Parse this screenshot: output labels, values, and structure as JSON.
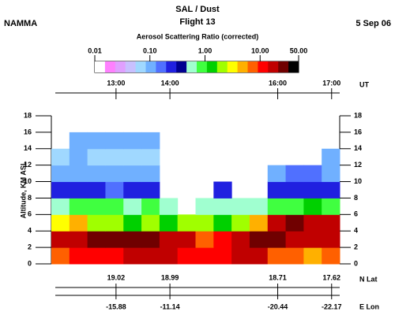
{
  "chart_data": {
    "type": "heatmap",
    "title": "SAL / Dust",
    "subtitle": "Flight 13",
    "left_label": "NAMMA",
    "date": "5 Sep 06",
    "colorbar_title": "Aerosol Scattering Ratio (corrected)",
    "clim": [
      0.01,
      50
    ],
    "log_scale": true,
    "cticks": [
      {
        "value": 0.01,
        "label": "0.01"
      },
      {
        "value": 0.1,
        "label": "0.10"
      },
      {
        "value": 1,
        "label": "1.00"
      },
      {
        "value": 10,
        "label": "10.00"
      },
      {
        "value": 50,
        "label": "50.00"
      }
    ],
    "colors": [
      "#ffffff",
      "#ff80ff",
      "#e0a0ff",
      "#c8c0ff",
      "#a0d8ff",
      "#70b0ff",
      "#5070ff",
      "#2020e0",
      "#000090",
      "#a0ffd0",
      "#40ff40",
      "#00d000",
      "#a0ff00",
      "#ffff00",
      "#ffb000",
      "#ff6000",
      "#ff0000",
      "#c00000",
      "#700000",
      "#000000"
    ],
    "xlabel": "UT",
    "xlim": [
      11.8,
      17.15
    ],
    "xticks": [
      {
        "value": 13,
        "label": "13:00"
      },
      {
        "value": 14,
        "label": "14:00"
      },
      {
        "value": 16,
        "label": "16:00"
      },
      {
        "value": 17,
        "label": "17:00"
      }
    ],
    "ylabel": "Altitude, KM ASL",
    "ylim": [
      0,
      18
    ],
    "yticks": [
      0,
      2,
      4,
      6,
      8,
      10,
      12,
      14,
      16,
      18
    ],
    "lat_label": "N Lat",
    "lat_ticks": [
      {
        "value": 13,
        "label": "19.02"
      },
      {
        "value": 14,
        "label": "18.99"
      },
      {
        "value": 16,
        "label": "18.71"
      },
      {
        "value": 17,
        "label": "17.62"
      }
    ],
    "lon_label": "E Lon",
    "lon_ticks": [
      {
        "value": 13,
        "label": "-15.88"
      },
      {
        "value": 14,
        "label": "-11.14"
      },
      {
        "value": 16,
        "label": "-20.44"
      },
      {
        "value": 17,
        "label": "-22.17"
      }
    ],
    "z": [
      [
        8,
        10,
        12,
        12,
        15,
        15,
        15,
        12,
        10,
        12,
        15,
        20,
        8,
        6,
        5,
        6
      ],
      [
        15,
        20,
        25,
        25,
        25,
        25,
        20,
        15,
        8,
        10,
        20,
        25,
        25,
        20,
        15,
        15
      ],
      [
        3,
        4,
        2,
        2,
        1.5,
        2,
        1.5,
        2,
        2,
        1.2,
        2,
        4,
        20,
        25,
        20,
        20
      ],
      [
        0.6,
        0.8,
        0.8,
        0.9,
        0.7,
        0.8,
        0.5,
        null,
        0.5,
        0.6,
        0.5,
        0.6,
        0.8,
        1,
        1.2,
        1
      ],
      [
        0.2,
        0.3,
        0.3,
        0.15,
        0.2,
        0.3,
        null,
        null,
        null,
        0.3,
        null,
        null,
        0.2,
        0.3,
        0.3,
        0.3
      ],
      [
        0.1,
        0.1,
        0.1,
        0.1,
        0.1,
        0.1,
        null,
        null,
        null,
        null,
        null,
        null,
        0.1,
        0.15,
        0.15,
        0.1
      ],
      [
        0.08,
        0.1,
        0.08,
        0.08,
        0.08,
        0.08,
        null,
        null,
        null,
        null,
        null,
        null,
        null,
        null,
        null,
        0.1
      ],
      [
        null,
        0.1,
        0.1,
        0.1,
        0.1,
        0.1,
        null,
        null,
        null,
        null,
        null,
        null,
        null,
        null,
        null,
        null
      ],
      [
        null,
        null,
        null,
        null,
        null,
        null,
        null,
        null,
        null,
        null,
        null,
        null,
        null,
        null,
        null,
        null
      ]
    ]
  }
}
